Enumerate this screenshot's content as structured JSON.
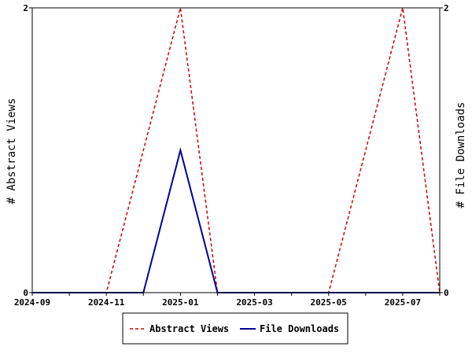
{
  "chart_data": {
    "type": "line",
    "x": [
      "2024-09",
      "2024-10",
      "2024-11",
      "2024-12",
      "2025-01",
      "2025-02",
      "2025-03",
      "2025-04",
      "2025-05",
      "2025-06",
      "2025-07",
      "2025-08"
    ],
    "x_tick_labels": [
      "2024-09",
      "2024-11",
      "2025-01",
      "2025-03",
      "2025-05",
      "2025-07"
    ],
    "xlim": [
      "2024-09",
      "2025-08"
    ],
    "series": [
      {
        "name": "Abstract Views",
        "axis": "left",
        "color": "#cc0000",
        "style": "dashed",
        "values": [
          0,
          0,
          0,
          1,
          2,
          0,
          0,
          0,
          0,
          1,
          2,
          0
        ]
      },
      {
        "name": "File Downloads",
        "axis": "right",
        "color": "#000099",
        "style": "solid",
        "values": [
          0,
          0,
          0,
          0,
          1,
          0,
          0,
          0,
          0,
          0,
          0,
          0
        ]
      }
    ],
    "ylabel_left": "# Abstract Views",
    "ylabel_right": "# File Downloads",
    "ylim_left": [
      0,
      2
    ],
    "ylim_right": [
      0,
      2
    ],
    "y_tick_labels_left": [
      "0",
      "2"
    ],
    "y_tick_labels_right": [
      "0",
      "2"
    ],
    "grid": false,
    "legend_position": "bottom-center"
  }
}
